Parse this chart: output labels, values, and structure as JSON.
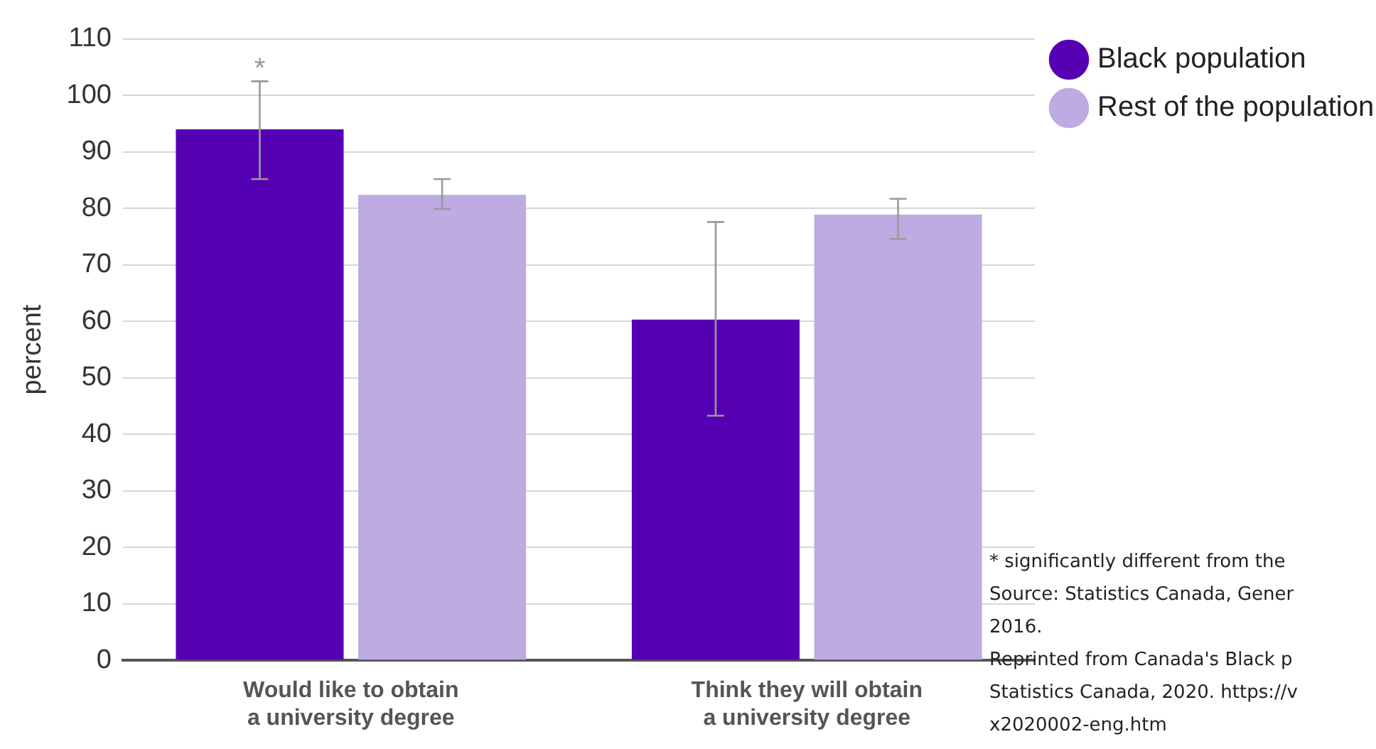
{
  "chart_data": {
    "type": "bar",
    "ylabel": "percent",
    "categories": [
      "Would like to obtain a university degree",
      "Think they will obtain a university degree"
    ],
    "series": [
      {
        "name": "Black population",
        "color": "#5600b4",
        "values": [
          94,
          60.3
        ],
        "errors": [
          [
            85.2,
            102.5
          ],
          [
            43.3,
            77.6
          ]
        ]
      },
      {
        "name": "Rest of the population",
        "color": "#bdabe2",
        "values": [
          82.4,
          78.9
        ],
        "errors": [
          [
            79.9,
            85.2
          ],
          [
            74.6,
            81.7
          ]
        ]
      }
    ],
    "ylim": [
      0,
      110
    ],
    "yticks": [
      0,
      10,
      20,
      30,
      40,
      50,
      60,
      70,
      80,
      90,
      100,
      110
    ],
    "grid": "y",
    "legend": "top right",
    "annotations": [
      "*",
      "* significantly different from the",
      "Source: Statistics Canada, Gener",
      "2016.",
      "Reprinted from Canada's Black p",
      "Statistics Canada, 2020. https://v",
      "x2020002-eng.htm"
    ]
  }
}
